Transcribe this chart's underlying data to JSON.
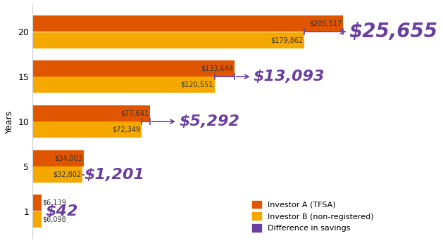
{
  "years": [
    1,
    5,
    10,
    15,
    20
  ],
  "investor_a": [
    6139,
    34003,
    77641,
    133644,
    205517
  ],
  "investor_b": [
    6098,
    32802,
    72349,
    120551,
    179862
  ],
  "diff_labels": [
    "$42",
    "$1,201",
    "$5,292",
    "$13,093",
    "$25,655"
  ],
  "a_labels": [
    "$6,139",
    "$34,003",
    "$77,641",
    "$133,644",
    "$205,517"
  ],
  "b_labels": [
    "$6,098",
    "$32,802",
    "$72,349",
    "$120,551",
    "$179,862"
  ],
  "color_a": "#E05500",
  "color_b": "#F5A800",
  "color_diff": "#6B3FA0",
  "bar_height": 0.36,
  "bar_gap": 0.01,
  "ylabel": "Years",
  "legend_labels": [
    "Investor A (TFSA)",
    "Investor B (non-registered)",
    "Difference in savings"
  ],
  "xlim": [
    0,
    230000
  ],
  "figsize": [
    6.29,
    3.46
  ],
  "dpi": 100,
  "diff_fontsizes": [
    16,
    16,
    16,
    16,
    20
  ],
  "label_fontsize": 7,
  "ytick_fontsize": 9
}
